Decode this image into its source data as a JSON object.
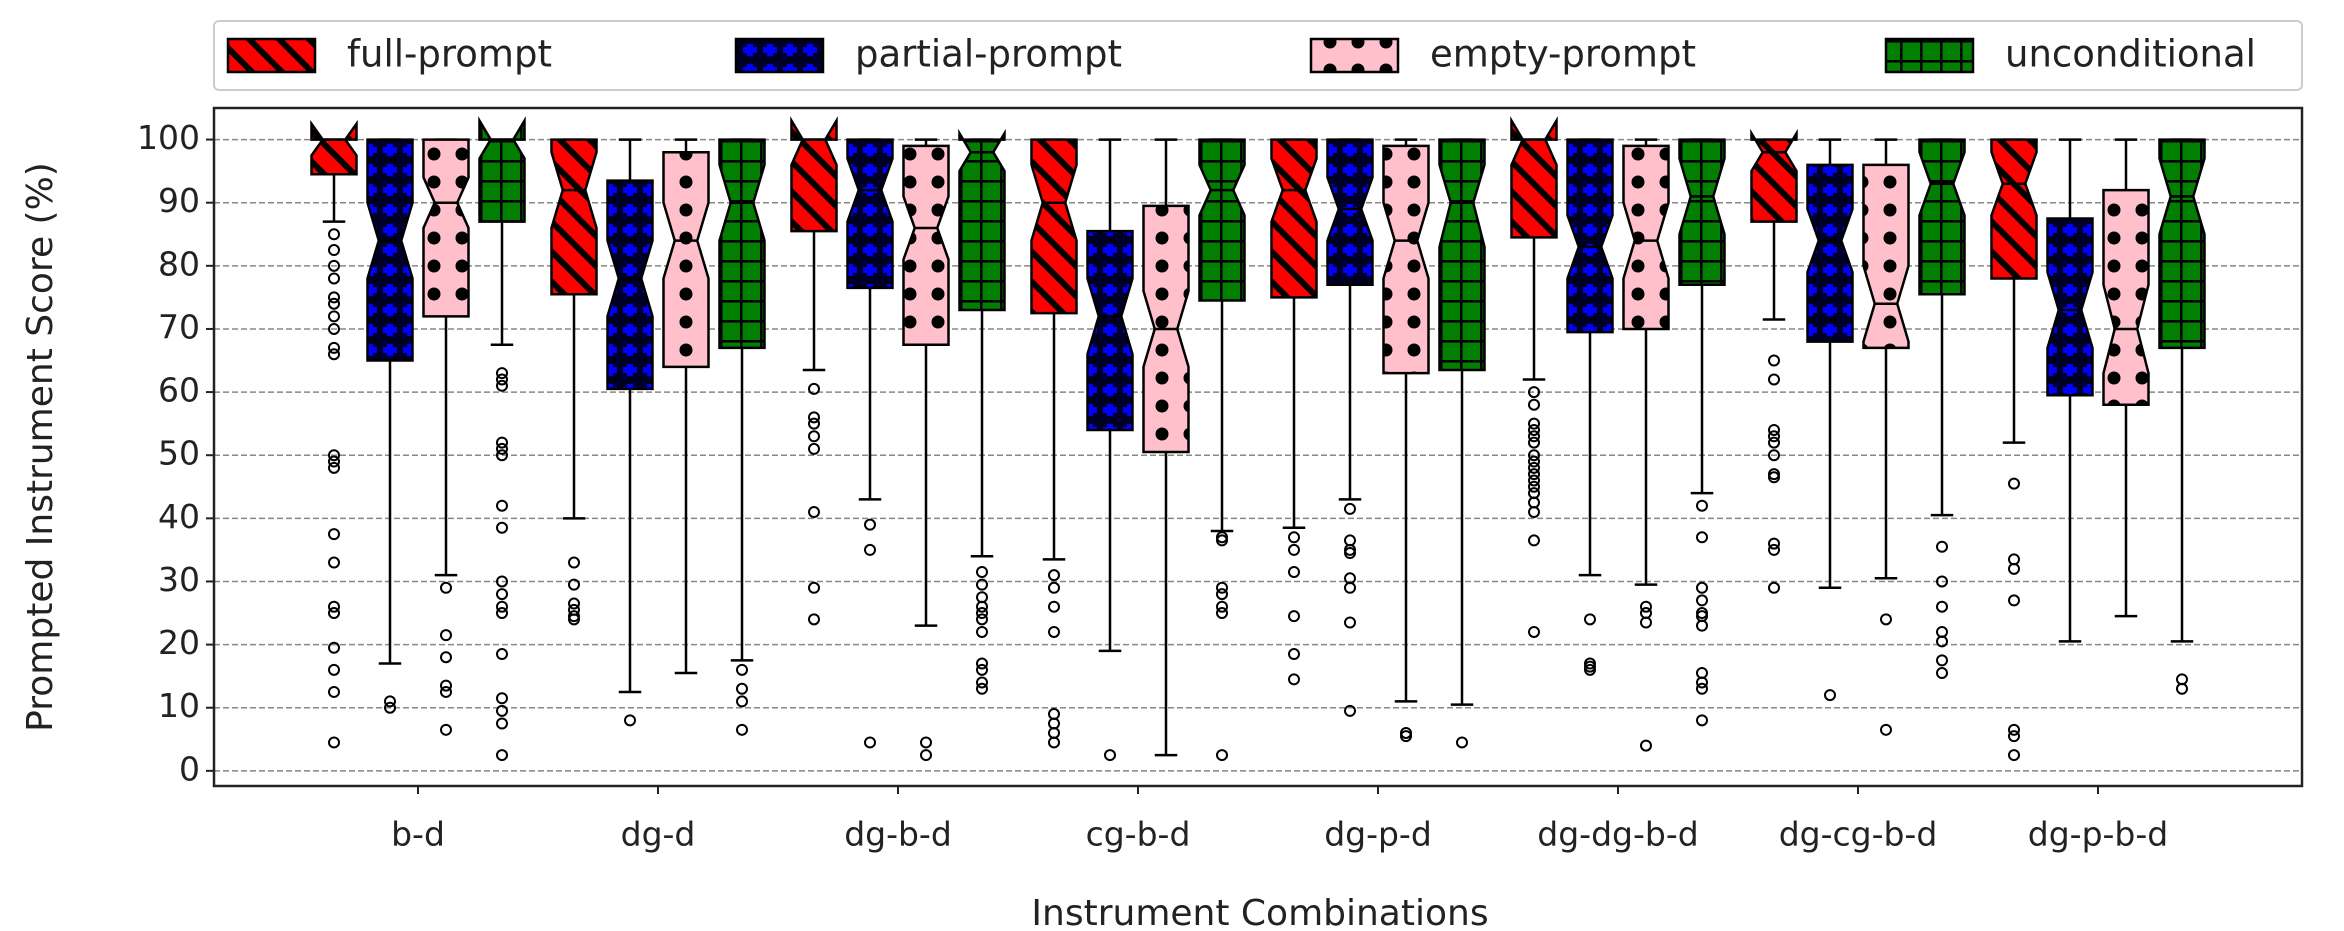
{
  "chart_data": {
    "type": "box",
    "x_label": "Instrument Combinations",
    "y_label": "Prompted Instrument Score (%)",
    "categories": [
      "b-d",
      "dg-d",
      "dg-b-d",
      "cg-b-d",
      "dg-p-d",
      "dg-dg-b-d",
      "dg-cg-b-d",
      "dg-p-b-d"
    ],
    "ylim": [
      -2.4,
      105
    ],
    "yticks": [
      0,
      10,
      20,
      30,
      40,
      50,
      60,
      70,
      80,
      90,
      100
    ],
    "grid": true,
    "legend": "top",
    "series": [
      {
        "name": "full-prompt",
        "color": "#ff0000",
        "hatch": "diagonal",
        "boxes": [
          {
            "whislo": 87,
            "q1": 94.5,
            "med": 100,
            "q3": 100,
            "whishi": 100,
            "notch": [
              97.5,
              102.5
            ],
            "fliers": [
              85,
              82.5,
              80,
              78,
              75,
              74,
              72,
              70,
              67,
              66,
              50,
              49,
              48,
              37.5,
              33,
              26,
              25,
              19.5,
              16,
              12.5,
              4.5
            ]
          },
          {
            "whislo": 40,
            "q1": 75.5,
            "med": 92,
            "q3": 100,
            "whishi": 100,
            "notch": [
              86,
              98
            ],
            "fliers": [
              33,
              29.5,
              26.5,
              25.5,
              24.5,
              24
            ]
          },
          {
            "whislo": 63.5,
            "q1": 85.5,
            "med": 100,
            "q3": 100,
            "whishi": 100,
            "notch": [
              96,
              103
            ],
            "fliers": [
              60.5,
              56,
              55,
              53,
              51,
              41,
              29,
              24
            ]
          },
          {
            "whislo": 33.5,
            "q1": 72.5,
            "med": 90,
            "q3": 100,
            "whishi": 100,
            "notch": [
              84,
              96
            ],
            "fliers": [
              31,
              29,
              26,
              22,
              9,
              7.5,
              6,
              4.5
            ]
          },
          {
            "whislo": 38.5,
            "q1": 75,
            "med": 92,
            "q3": 100,
            "whishi": 100,
            "notch": [
              87,
              97
            ],
            "fliers": [
              37,
              35,
              31.5,
              24.5,
              18.5,
              14.5
            ]
          },
          {
            "whislo": 62,
            "q1": 84.5,
            "med": 100,
            "q3": 100,
            "whishi": 100,
            "notch": [
              96,
              103
            ],
            "fliers": [
              60,
              58,
              55,
              54,
              53,
              52,
              50,
              49,
              48,
              47,
              46,
              45,
              44,
              42.5,
              41,
              36.5,
              22
            ]
          },
          {
            "whislo": 71.5,
            "q1": 87,
            "med": 98,
            "q3": 100,
            "whishi": 100,
            "notch": [
              95,
              101
            ],
            "fliers": [
              65,
              62,
              54,
              53,
              52,
              50,
              47,
              46.5,
              36,
              35,
              29
            ]
          },
          {
            "whislo": 52,
            "q1": 78,
            "med": 93,
            "q3": 100,
            "whishi": 100,
            "notch": [
              88,
              98
            ],
            "fliers": [
              45.5,
              33.5,
              32,
              27,
              6.5,
              5.5,
              2.5
            ]
          }
        ]
      },
      {
        "name": "partial-prompt",
        "color": "#0000ff",
        "hatch": "plus",
        "boxes": [
          {
            "whislo": 17,
            "q1": 65,
            "med": 84,
            "q3": 100,
            "whishi": 100,
            "notch": [
              78,
              90
            ],
            "fliers": [
              11,
              10
            ]
          },
          {
            "whislo": 12.5,
            "q1": 60.5,
            "med": 78,
            "q3": 93.5,
            "whishi": 100,
            "notch": [
              72,
              84
            ],
            "fliers": [
              8
            ]
          },
          {
            "whislo": 43,
            "q1": 76.5,
            "med": 92,
            "q3": 100,
            "whishi": 100,
            "notch": [
              87,
              97
            ],
            "fliers": [
              39,
              35,
              4.5
            ]
          },
          {
            "whislo": 19,
            "q1": 54,
            "med": 72,
            "q3": 85.5,
            "whishi": 100,
            "notch": [
              66,
              78
            ],
            "fliers": [
              2.5
            ]
          },
          {
            "whislo": 43,
            "q1": 77,
            "med": 89,
            "q3": 100,
            "whishi": 100,
            "notch": [
              84,
              94
            ],
            "fliers": [
              41.5,
              36.5,
              35,
              34.5,
              30.5,
              29,
              23.5,
              9.5
            ]
          },
          {
            "whislo": 31,
            "q1": 69.5,
            "med": 83,
            "q3": 100,
            "whishi": 100,
            "notch": [
              78,
              88
            ],
            "fliers": [
              24,
              17,
              16.5,
              16
            ]
          },
          {
            "whislo": 29,
            "q1": 68,
            "med": 84,
            "q3": 96,
            "whishi": 100,
            "notch": [
              79,
              89
            ],
            "fliers": [
              12
            ]
          },
          {
            "whislo": 20.5,
            "q1": 59.5,
            "med": 73,
            "q3": 87.5,
            "whishi": 100,
            "notch": [
              67,
              79
            ],
            "fliers": []
          }
        ]
      },
      {
        "name": "empty-prompt",
        "color": "#ffc0cb",
        "hatch": "dots",
        "boxes": [
          {
            "whislo": 31,
            "q1": 72,
            "med": 90,
            "q3": 100,
            "whishi": 100,
            "notch": [
              86,
              94
            ],
            "fliers": [
              29,
              21.5,
              18,
              13.5,
              12.5,
              6.5
            ]
          },
          {
            "whislo": 15.5,
            "q1": 64,
            "med": 84,
            "q3": 98,
            "whishi": 100,
            "notch": [
              78,
              90
            ],
            "fliers": []
          },
          {
            "whislo": 23,
            "q1": 67.5,
            "med": 86,
            "q3": 99,
            "whishi": 100,
            "notch": [
              81,
              91
            ],
            "fliers": [
              4.5,
              2.5
            ]
          },
          {
            "whislo": 2.5,
            "q1": 50.5,
            "med": 70,
            "q3": 89.5,
            "whishi": 100,
            "notch": [
              64,
              76
            ],
            "fliers": []
          },
          {
            "whislo": 11,
            "q1": 63,
            "med": 84,
            "q3": 99,
            "whishi": 100,
            "notch": [
              78,
              90
            ],
            "fliers": [
              6,
              5.5
            ]
          },
          {
            "whislo": 29.5,
            "q1": 70,
            "med": 84,
            "q3": 99,
            "whishi": 100,
            "notch": [
              78,
              90
            ],
            "fliers": [
              26,
              25,
              23.5,
              4
            ]
          },
          {
            "whislo": 30.5,
            "q1": 67,
            "med": 74,
            "q3": 96,
            "whishi": 100,
            "notch": [
              68,
              80
            ],
            "fliers": [
              24,
              6.5
            ]
          },
          {
            "whislo": 24.5,
            "q1": 58,
            "med": 70,
            "q3": 92,
            "whishi": 100,
            "notch": [
              63,
              77
            ],
            "fliers": []
          }
        ]
      },
      {
        "name": "unconditional",
        "color": "#007f00",
        "hatch": "grid",
        "boxes": [
          {
            "whislo": 67.5,
            "q1": 87,
            "med": 100,
            "q3": 100,
            "whishi": 100,
            "notch": [
              97,
              103
            ],
            "fliers": [
              63,
              62,
              61,
              52,
              51,
              50,
              42,
              38.5,
              30,
              28,
              26,
              25,
              18.5,
              11.5,
              9.5,
              7.5,
              2.5
            ]
          },
          {
            "whislo": 17.5,
            "q1": 67,
            "med": 90,
            "q3": 100,
            "whishi": 100,
            "notch": [
              84,
              96
            ],
            "fliers": [
              16,
              13,
              11,
              6.5
            ]
          },
          {
            "whislo": 34,
            "q1": 73,
            "med": 98,
            "q3": 100,
            "whishi": 100,
            "notch": [
              95,
              101
            ],
            "fliers": [
              31.5,
              29.5,
              27.5,
              26,
              25,
              24,
              22,
              17,
              16,
              14,
              13
            ]
          },
          {
            "whislo": 38,
            "q1": 74.5,
            "med": 92,
            "q3": 100,
            "whishi": 100,
            "notch": [
              88,
              96
            ],
            "fliers": [
              37,
              36.5,
              29,
              28,
              26,
              25,
              2.5
            ]
          },
          {
            "whislo": 10.5,
            "q1": 63.5,
            "med": 90,
            "q3": 100,
            "whishi": 100,
            "notch": [
              83,
              96
            ],
            "fliers": [
              4.5
            ]
          },
          {
            "whislo": 44,
            "q1": 77,
            "med": 91,
            "q3": 100,
            "whishi": 100,
            "notch": [
              85,
              97
            ],
            "fliers": [
              42,
              37,
              29,
              27,
              25,
              24.5,
              23,
              15.5,
              14,
              13,
              8
            ]
          },
          {
            "whislo": 40.5,
            "q1": 75.5,
            "med": 93,
            "q3": 100,
            "whishi": 100,
            "notch": [
              88,
              98
            ],
            "fliers": [
              35.5,
              30,
              26,
              22,
              20.5,
              17.5,
              15.5
            ]
          },
          {
            "whislo": 20.5,
            "q1": 67,
            "med": 91,
            "q3": 100,
            "whishi": 100,
            "notch": [
              85,
              97
            ],
            "fliers": [
              14.5,
              13
            ]
          }
        ]
      }
    ]
  }
}
